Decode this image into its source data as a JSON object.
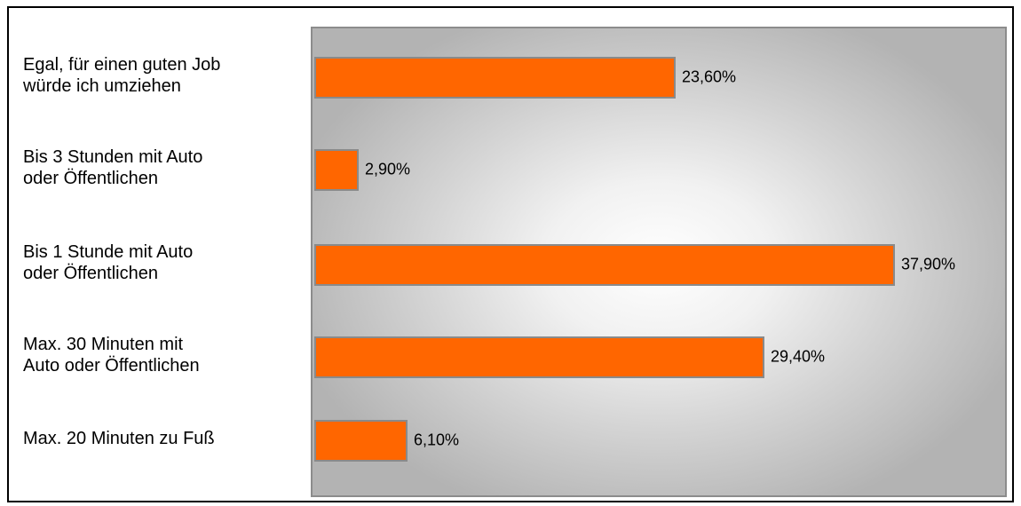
{
  "chart_data": {
    "type": "bar",
    "orientation": "horizontal",
    "categories": [
      [
        "Egal, für einen guten Job",
        "würde ich umziehen"
      ],
      [
        "Bis 3 Stunden mit Auto",
        "oder Öffentlichen"
      ],
      [
        "Bis 1 Stunde mit Auto",
        "oder Öffentlichen"
      ],
      [
        "Max. 30 Minuten mit",
        "Auto oder Öffentlichen"
      ],
      [
        "Max. 20 Minuten zu Fuß"
      ]
    ],
    "values": [
      23.6,
      2.9,
      37.9,
      29.4,
      6.1
    ],
    "value_labels": [
      "23,60%",
      "2,90%",
      "37,90%",
      "29,40%",
      "6,10%"
    ],
    "xlim": [
      0,
      45
    ],
    "grid": false,
    "legend": false,
    "colors": {
      "bar": "#ff6600",
      "bar_border": "#8a8a8a",
      "plot_border": "#8c8c8c"
    }
  }
}
